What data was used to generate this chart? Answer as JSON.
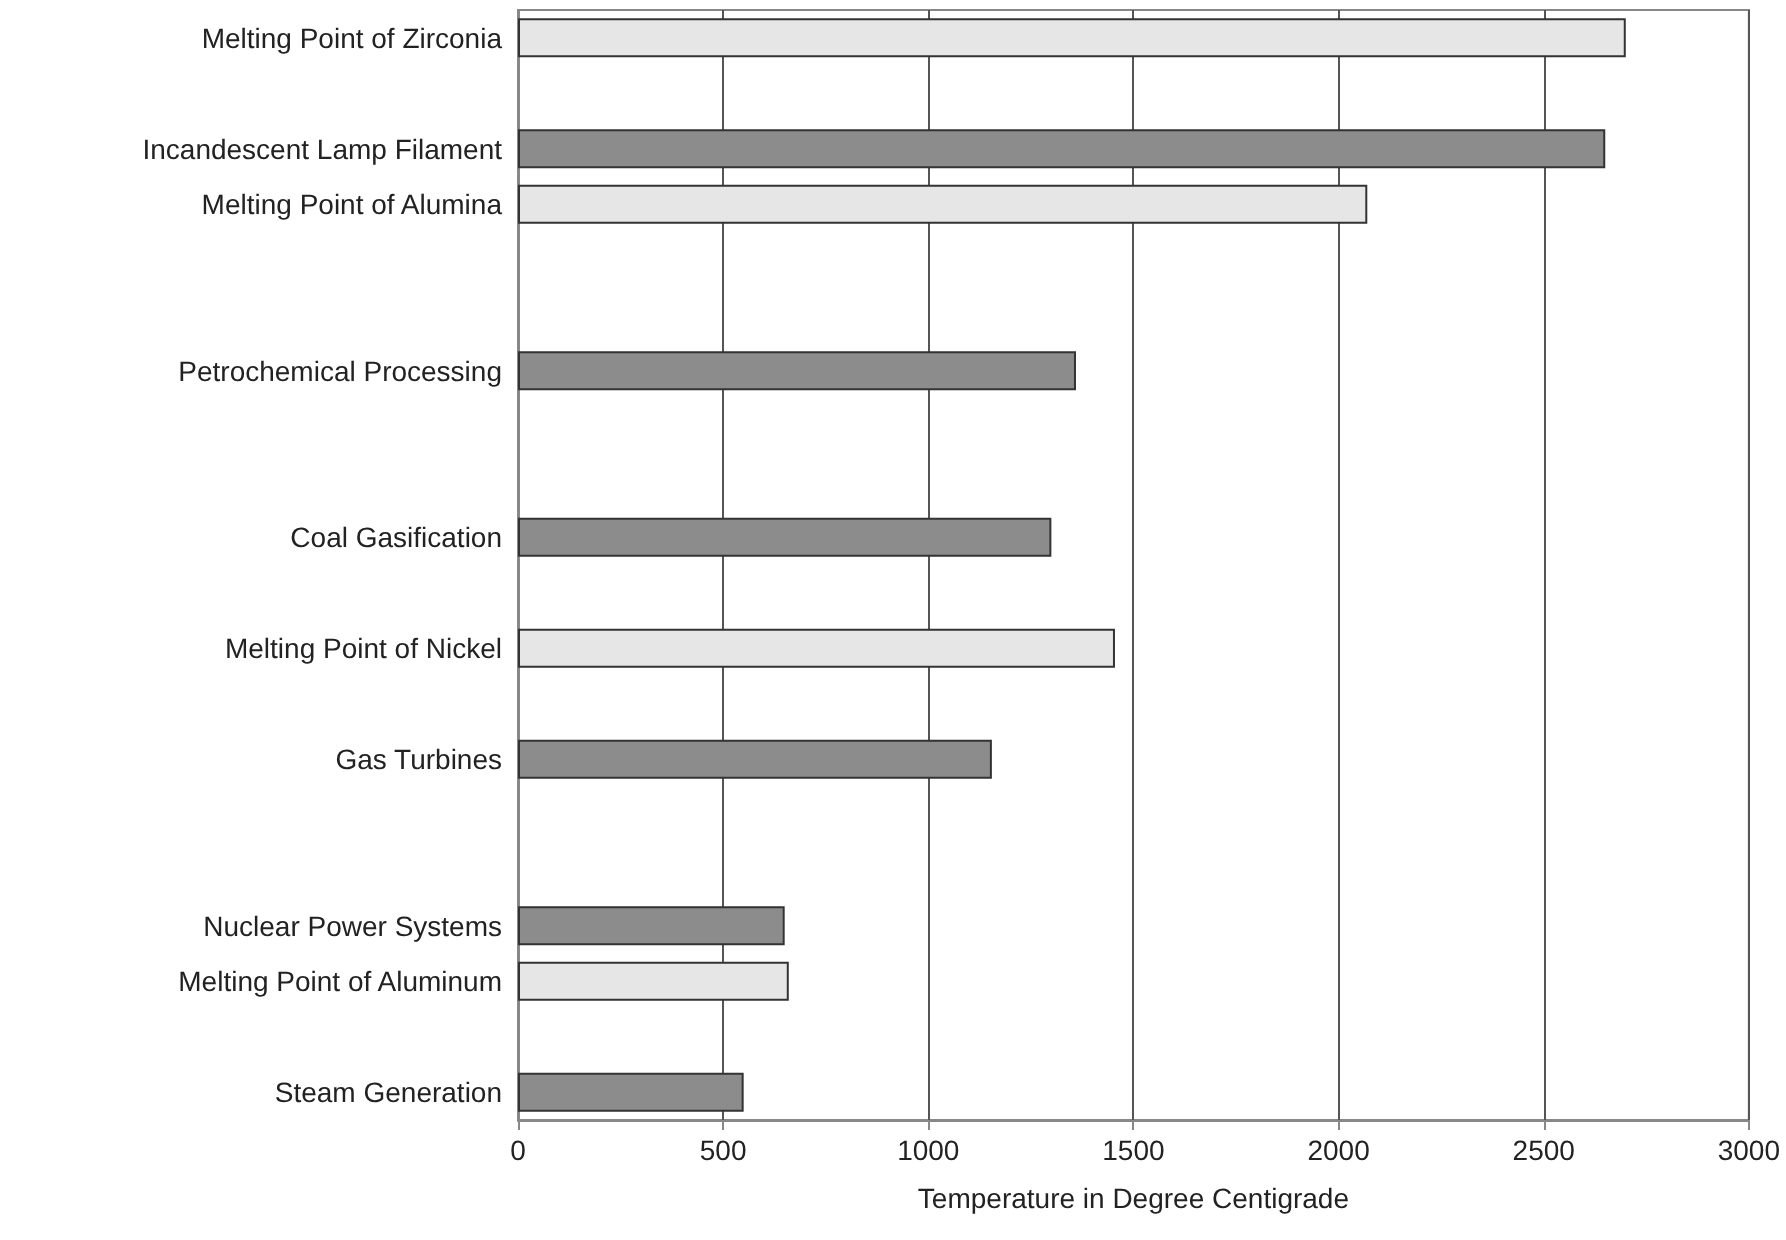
{
  "chart_data": {
    "type": "bar",
    "orientation": "horizontal",
    "xlabel": "Temperature in Degree Centigrade",
    "categories": [
      "Melting Point of Zirconia",
      null,
      "Incandescent Lamp Filament",
      "Melting Point of Alumina",
      null,
      null,
      "Petrochemical Processing",
      null,
      null,
      "Coal Gasification",
      null,
      "Melting Point of Nickel",
      null,
      "Gas Turbines",
      null,
      null,
      "Nuclear Power Systems",
      "Melting Point of Aluminum",
      null,
      "Steam Generation"
    ],
    "values": [
      2700,
      null,
      2650,
      2070,
      null,
      null,
      1360,
      null,
      null,
      1300,
      null,
      1455,
      null,
      1155,
      null,
      null,
      650,
      660,
      null,
      550
    ],
    "colors": [
      "#e6e6e6",
      "#ffffff",
      "#8c8c8c",
      "#e6e6e6",
      "#ffffff",
      "#ffffff",
      "#8c8c8c",
      "#ffffff",
      "#ffffff",
      "#8c8c8c",
      "#ffffff",
      "#e6e6e6",
      "#ffffff",
      "#8c8c8c",
      "#ffffff",
      "#ffffff",
      "#8c8c8c",
      "#e6e6e6",
      "#ffffff",
      "#8c8c8c"
    ],
    "xlim": [
      0,
      3000
    ],
    "xticks": [
      0,
      500,
      1000,
      1500,
      2000,
      2500,
      3000
    ],
    "grid": "x"
  }
}
